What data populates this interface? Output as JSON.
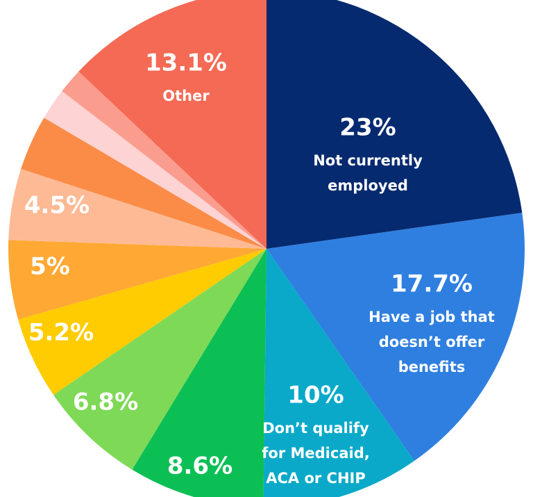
{
  "chart_data": {
    "type": "pie",
    "slices": [
      {
        "value": 23,
        "pct_label": "23%",
        "text": [
          "Not currently",
          "employed"
        ],
        "color": "#062a70"
      },
      {
        "value": 17.7,
        "pct_label": "17.7%",
        "text": [
          "Have a job that",
          "doesn’t offer",
          "benefits"
        ],
        "color": "#2f7fe0"
      },
      {
        "value": 10,
        "pct_label": "10%",
        "text": [
          "Don’t qualify",
          "for Medicaid,",
          "ACA or CHIP"
        ],
        "color": "#0aa9c9"
      },
      {
        "value": 8.6,
        "pct_label": "8.6%",
        "text": [],
        "color": "#0cbf55"
      },
      {
        "value": 6.8,
        "pct_label": "6.8%",
        "text": [],
        "color": "#7ed957"
      },
      {
        "value": 5.2,
        "pct_label": "5.2%",
        "text": [],
        "color": "#ffcc02"
      },
      {
        "value": 5,
        "pct_label": "5%",
        "text": [],
        "color": "#ffa834"
      },
      {
        "value": 4.5,
        "pct_label": "4.5%",
        "text": [],
        "color": "#fdba95"
      },
      {
        "value": 3.5,
        "pct_label": "",
        "text": [],
        "color": "#fb8c47"
      },
      {
        "value": 2,
        "pct_label": "",
        "text": [],
        "color": "#fdd3d3"
      },
      {
        "value": 1.6,
        "pct_label": "",
        "text": [],
        "color": "#fb9d8e"
      },
      {
        "value": 13.1,
        "pct_label": "13.1%",
        "text": [
          "Other"
        ],
        "color": "#f46a55"
      }
    ]
  }
}
